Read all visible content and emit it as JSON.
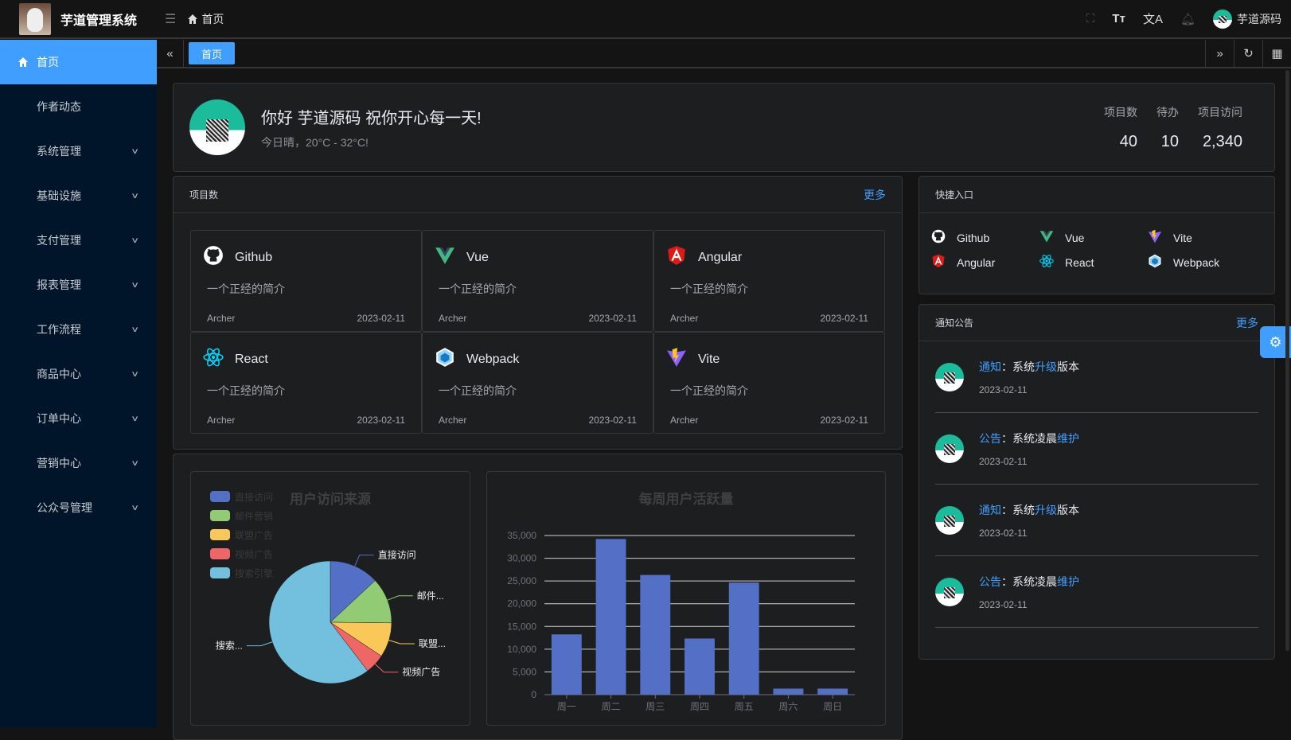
{
  "app": {
    "title": "芋道管理系统",
    "breadcrumb": "首页",
    "user": "芋道源码"
  },
  "header_icons": [
    "menu-fold-icon",
    "fullscreen-icon",
    "font-size-icon",
    "translate-icon",
    "bell-icon"
  ],
  "sidebar": {
    "items": [
      {
        "label": "首页",
        "active": true
      },
      {
        "label": "作者动态"
      },
      {
        "label": "系统管理",
        "expandable": true
      },
      {
        "label": "基础设施",
        "expandable": true
      },
      {
        "label": "支付管理",
        "expandable": true
      },
      {
        "label": "报表管理",
        "expandable": true
      },
      {
        "label": "工作流程",
        "expandable": true
      },
      {
        "label": "商品中心",
        "expandable": true
      },
      {
        "label": "订单中心",
        "expandable": true
      },
      {
        "label": "营销中心",
        "expandable": true
      },
      {
        "label": "公众号管理",
        "expandable": true
      }
    ]
  },
  "tabs": [
    {
      "label": "首页",
      "active": true
    }
  ],
  "welcome": {
    "title": "你好 芋道源码 祝你开心每一天!",
    "subtitle": "今日晴，20°C - 32°C!",
    "stats": [
      {
        "label": "项目数",
        "value": "40"
      },
      {
        "label": "待办",
        "value": "10"
      },
      {
        "label": "项目访问",
        "value": "2,340"
      }
    ]
  },
  "projects": {
    "title": "项目数",
    "more": "更多",
    "items": [
      {
        "name": "Github",
        "icon": "github-icon",
        "desc": "一个正经的简介",
        "author": "Archer",
        "date": "2023-02-11"
      },
      {
        "name": "Vue",
        "icon": "vue-icon",
        "desc": "一个正经的简介",
        "author": "Archer",
        "date": "2023-02-11"
      },
      {
        "name": "Angular",
        "icon": "angular-icon",
        "desc": "一个正经的简介",
        "author": "Archer",
        "date": "2023-02-11"
      },
      {
        "name": "React",
        "icon": "react-icon",
        "desc": "一个正经的简介",
        "author": "Archer",
        "date": "2023-02-11"
      },
      {
        "name": "Webpack",
        "icon": "webpack-icon",
        "desc": "一个正经的简介",
        "author": "Archer",
        "date": "2023-02-11"
      },
      {
        "name": "Vite",
        "icon": "vite-icon",
        "desc": "一个正经的简介",
        "author": "Archer",
        "date": "2023-02-11"
      }
    ]
  },
  "quick": {
    "title": "快捷入口",
    "items": [
      {
        "name": "Github",
        "icon": "github-icon"
      },
      {
        "name": "Vue",
        "icon": "vue-icon"
      },
      {
        "name": "Vite",
        "icon": "vite-icon"
      },
      {
        "name": "Angular",
        "icon": "angular-icon"
      },
      {
        "name": "React",
        "icon": "react-icon"
      },
      {
        "name": "Webpack",
        "icon": "webpack-icon"
      }
    ]
  },
  "notice": {
    "title": "通知公告",
    "more": "更多",
    "items": [
      {
        "type": "通知",
        "sep": "：",
        "pre": "系统",
        "hl": "升级",
        "post": "版本",
        "date": "2023-02-11"
      },
      {
        "type": "公告",
        "sep": "：",
        "pre": "系统凌晨",
        "hl": "维护",
        "post": "",
        "date": "2023-02-11"
      },
      {
        "type": "通知",
        "sep": "：",
        "pre": "系统",
        "hl": "升级",
        "post": "版本",
        "date": "2023-02-11"
      },
      {
        "type": "公告",
        "sep": "：",
        "pre": "系统凌晨",
        "hl": "维护",
        "post": "",
        "date": "2023-02-11"
      }
    ]
  },
  "colors": {
    "accent": "#409eff",
    "sidebar": "#001529"
  },
  "chart_data": [
    {
      "type": "pie",
      "title": "用户访问来源",
      "legend_position": "top-left",
      "series": [
        {
          "name": "直接访问",
          "value": 335,
          "label": "直接访问",
          "color": "#5470c6"
        },
        {
          "name": "邮件营销",
          "value": 310,
          "label": "邮件...",
          "color": "#91cc75"
        },
        {
          "name": "联盟广告",
          "value": 234,
          "label": "联盟...",
          "color": "#fac858"
        },
        {
          "name": "视频广告",
          "value": 135,
          "label": "视频广告",
          "color": "#ee6666"
        },
        {
          "name": "搜索引擎",
          "value": 1548,
          "label": "搜索...",
          "color": "#73c0de"
        }
      ]
    },
    {
      "type": "bar",
      "title": "每周用户活跃量",
      "categories": [
        "周一",
        "周二",
        "周三",
        "周四",
        "周五",
        "周六",
        "周日"
      ],
      "values": [
        13253,
        34235,
        26321,
        12340,
        24643,
        1322,
        1324
      ],
      "ylim": [
        0,
        35000
      ],
      "yticks": [
        "0",
        "5,000",
        "10,000",
        "15,000",
        "20,000",
        "25,000",
        "30,000",
        "35,000"
      ],
      "grid": true,
      "color": "#5470c6"
    }
  ]
}
